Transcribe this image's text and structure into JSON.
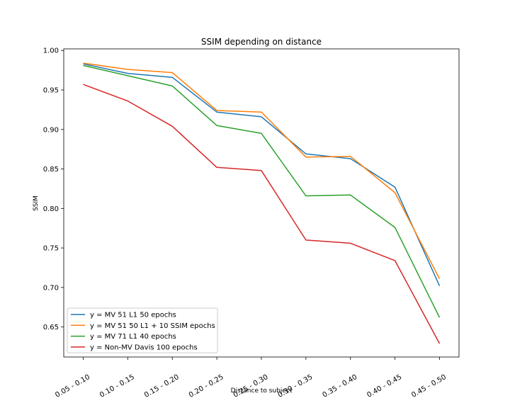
{
  "chart_data": {
    "type": "line",
    "title": "SSIM depending on distance",
    "xlabel": "Distance to subject",
    "ylabel": "SSIM",
    "categories": [
      "0.05 - 0.10",
      "0.10 - 0.15",
      "0.15 - 0.20",
      "0.20 - 0.25",
      "0.25 - 0.30",
      "0.30 - 0.35",
      "0.35 - 0.40",
      "0.40 - 0.45",
      "0.45 - 0.50"
    ],
    "ylim": [
      0.612,
      1.002
    ],
    "yticks": [
      "1.00",
      "0.95",
      "0.90",
      "0.85",
      "0.80",
      "0.75",
      "0.70",
      "0.65"
    ],
    "ytick_values": [
      1.0,
      0.95,
      0.9,
      0.85,
      0.8,
      0.75,
      0.7,
      0.65
    ],
    "grid": false,
    "legend_position": "lower-left",
    "series": [
      {
        "name": "y = MV 51 L1 50 epochs",
        "color": "#1f77b4",
        "values": [
          0.983,
          0.971,
          0.966,
          0.922,
          0.916,
          0.869,
          0.863,
          0.827,
          0.702
        ]
      },
      {
        "name": "y = MV 51 50 L1 + 10 SSIM epochs",
        "color": "#ff7f0e",
        "values": [
          0.984,
          0.976,
          0.972,
          0.924,
          0.922,
          0.865,
          0.866,
          0.82,
          0.711
        ]
      },
      {
        "name": "y = MV 71 L1 40 epochs",
        "color": "#2ca02c",
        "values": [
          0.981,
          0.968,
          0.955,
          0.905,
          0.895,
          0.816,
          0.817,
          0.776,
          0.662
        ]
      },
      {
        "name": "y = Non-MV Davis 100 epochs",
        "color": "#d62728",
        "values": [
          0.957,
          0.936,
          0.904,
          0.852,
          0.848,
          0.76,
          0.756,
          0.734,
          0.629
        ]
      }
    ]
  }
}
